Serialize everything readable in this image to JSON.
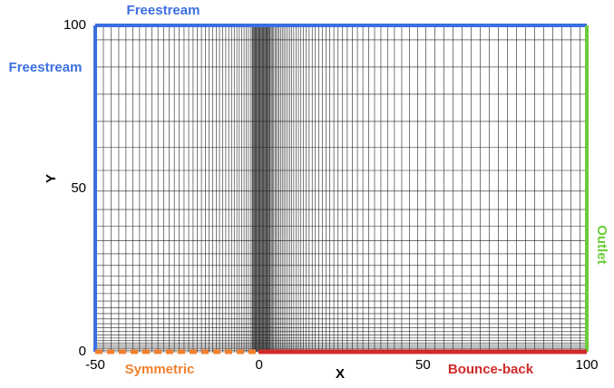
{
  "boundaries": {
    "top": "Freestream",
    "left": "Freestream",
    "right": "Outlet",
    "bottom_left": "Symmetric",
    "bottom_right": "Bounce-back"
  },
  "axes": {
    "x": {
      "label": "X",
      "ticks": [
        -50,
        0,
        50,
        100
      ]
    },
    "y": {
      "label": "Y",
      "ticks": [
        0,
        50,
        100
      ]
    }
  }
}
